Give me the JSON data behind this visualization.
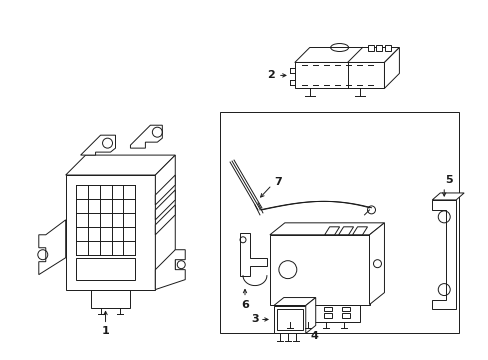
{
  "bg_color": "#ffffff",
  "line_color": "#1a1a1a",
  "fig_width": 4.89,
  "fig_height": 3.6,
  "dpi": 100,
  "lw": 0.7
}
